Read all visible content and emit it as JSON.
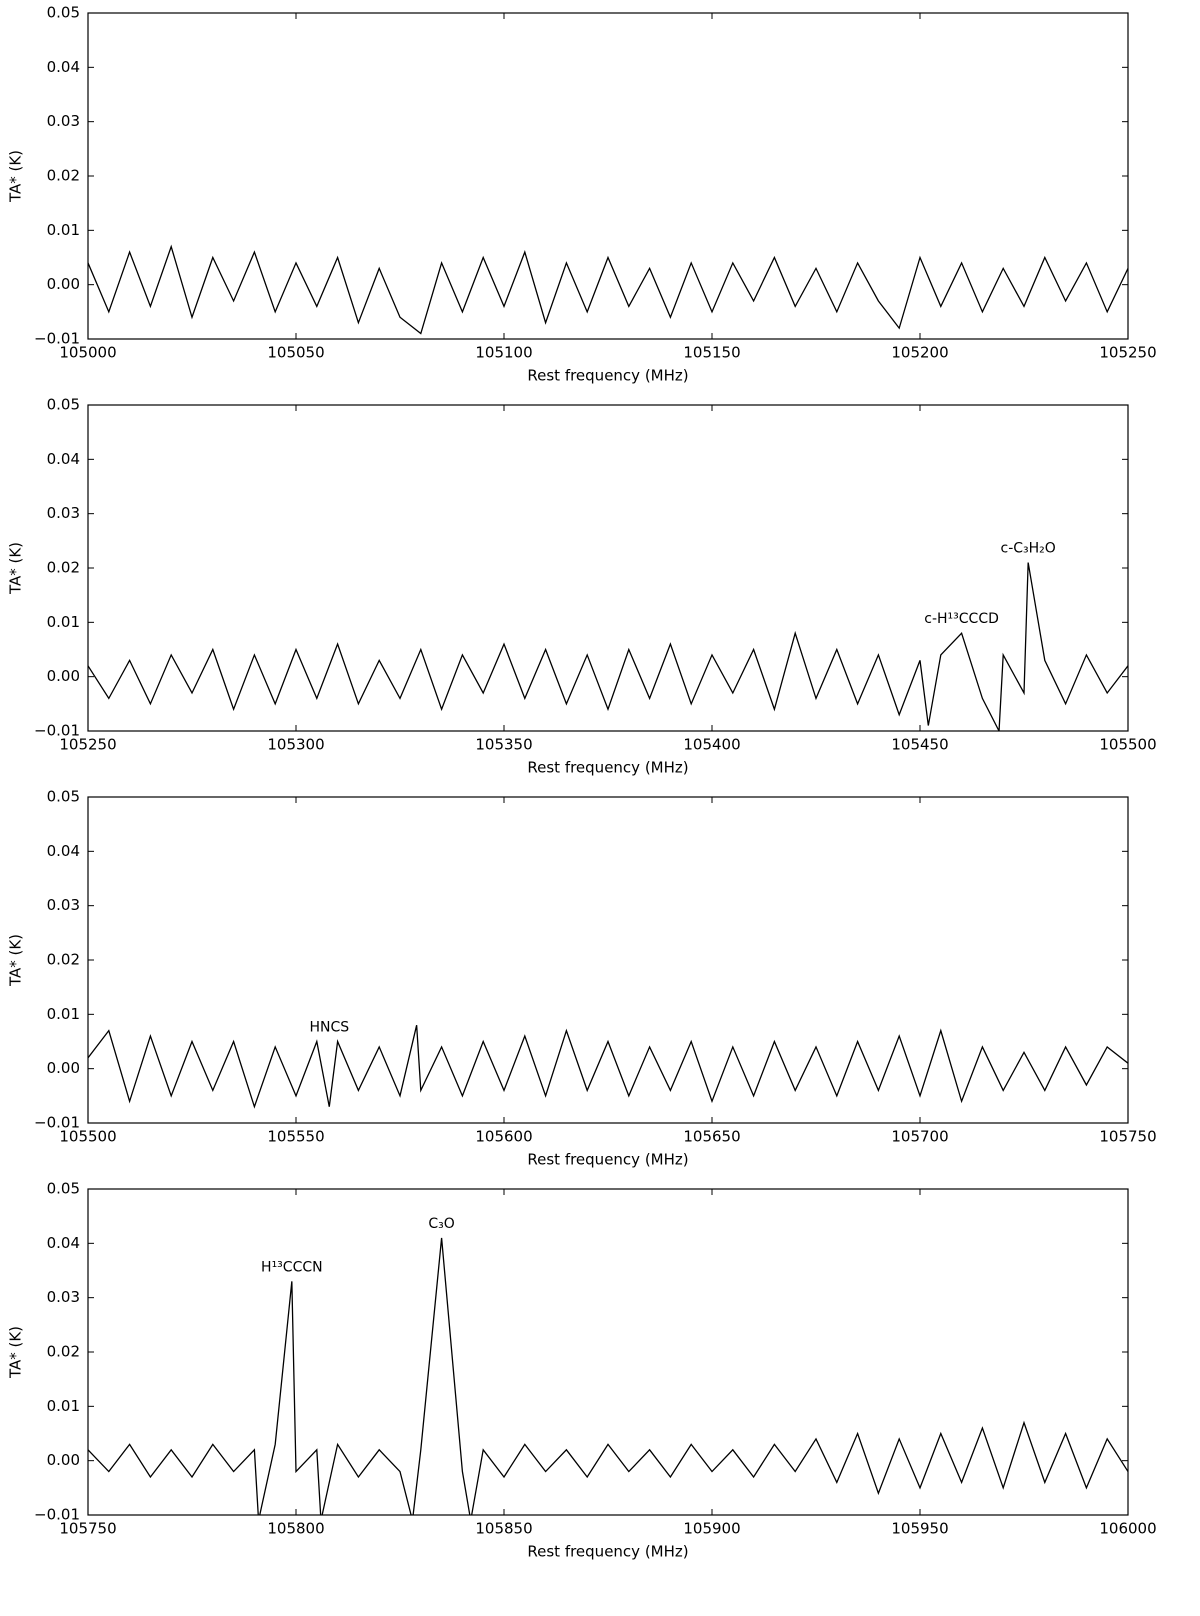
{
  "chart_data": [
    {
      "type": "line",
      "xlabel": "Rest frequency (MHz)",
      "ylabel": "TA* (K)",
      "color": "#000000",
      "xlim": [
        105000,
        105250
      ],
      "ylim": [
        -0.01,
        0.05
      ],
      "xticks": [
        105000,
        105050,
        105100,
        105150,
        105200,
        105250
      ],
      "yticks": [
        {
          "value": -0.01,
          "label": "−0.01"
        },
        {
          "value": 0,
          "label": "0.00"
        },
        {
          "value": 0.01,
          "label": "0.01"
        },
        {
          "value": 0.02,
          "label": "0.02"
        },
        {
          "value": 0.03,
          "label": "0.03"
        },
        {
          "value": 0.04,
          "label": "0.04"
        },
        {
          "value": 0.05,
          "label": "0.05"
        }
      ],
      "x": [
        105000,
        105005,
        105010,
        105015,
        105020,
        105025,
        105030,
        105035,
        105040,
        105045,
        105050,
        105055,
        105060,
        105065,
        105070,
        105075,
        105080,
        105085,
        105090,
        105095,
        105100,
        105105,
        105110,
        105115,
        105120,
        105125,
        105130,
        105135,
        105140,
        105145,
        105150,
        105155,
        105160,
        105165,
        105170,
        105175,
        105180,
        105185,
        105190,
        105195,
        105200,
        105205,
        105210,
        105215,
        105220,
        105225,
        105230,
        105235,
        105240,
        105245,
        105250
      ],
      "values": [
        0.004,
        -0.005,
        0.006,
        -0.004,
        0.007,
        -0.006,
        0.005,
        -0.003,
        0.006,
        -0.005,
        0.004,
        -0.004,
        0.005,
        -0.007,
        0.003,
        -0.006,
        -0.009,
        0.004,
        -0.005,
        0.005,
        -0.004,
        0.006,
        -0.007,
        0.004,
        -0.005,
        0.005,
        -0.004,
        0.003,
        -0.006,
        0.004,
        -0.005,
        0.004,
        -0.003,
        0.005,
        -0.004,
        0.003,
        -0.005,
        0.004,
        -0.003,
        -0.008,
        0.005,
        -0.004,
        0.004,
        -0.005,
        0.003,
        -0.004,
        0.005,
        -0.003,
        0.004,
        -0.005,
        0.003
      ],
      "annotations": []
    },
    {
      "type": "line",
      "xlabel": "Rest frequency (MHz)",
      "ylabel": "TA* (K)",
      "color": "#000000",
      "xlim": [
        105250,
        105500
      ],
      "ylim": [
        -0.01,
        0.05
      ],
      "xticks": [
        105250,
        105300,
        105350,
        105400,
        105450,
        105500
      ],
      "yticks": [
        {
          "value": -0.01,
          "label": "−0.01"
        },
        {
          "value": 0,
          "label": "0.00"
        },
        {
          "value": 0.01,
          "label": "0.01"
        },
        {
          "value": 0.02,
          "label": "0.02"
        },
        {
          "value": 0.03,
          "label": "0.03"
        },
        {
          "value": 0.04,
          "label": "0.04"
        },
        {
          "value": 0.05,
          "label": "0.05"
        }
      ],
      "x": [
        105250,
        105255,
        105260,
        105265,
        105270,
        105275,
        105280,
        105285,
        105290,
        105295,
        105300,
        105305,
        105310,
        105315,
        105320,
        105325,
        105330,
        105335,
        105340,
        105345,
        105350,
        105355,
        105360,
        105365,
        105370,
        105375,
        105380,
        105385,
        105390,
        105395,
        105400,
        105405,
        105410,
        105415,
        105420,
        105425,
        105430,
        105435,
        105440,
        105445,
        105450,
        105452,
        105455,
        105460,
        105465,
        105469,
        105470,
        105475,
        105476,
        105480,
        105485,
        105490,
        105495,
        105500
      ],
      "values": [
        0.002,
        -0.004,
        0.003,
        -0.005,
        0.004,
        -0.003,
        0.005,
        -0.006,
        0.004,
        -0.005,
        0.005,
        -0.004,
        0.006,
        -0.005,
        0.003,
        -0.004,
        0.005,
        -0.006,
        0.004,
        -0.003,
        0.006,
        -0.004,
        0.005,
        -0.005,
        0.004,
        -0.006,
        0.005,
        -0.004,
        0.006,
        -0.005,
        0.004,
        -0.003,
        0.005,
        -0.006,
        0.008,
        -0.004,
        0.005,
        -0.005,
        0.004,
        -0.007,
        0.003,
        -0.009,
        0.004,
        0.008,
        -0.004,
        -0.01,
        0.004,
        -0.003,
        0.021,
        0.003,
        -0.005,
        0.004,
        -0.003,
        0.002
      ],
      "annotations": [
        {
          "text": "c-H¹³CCCD",
          "x": 105460
        },
        {
          "text": "c-C₃H₂O",
          "x": 105476
        }
      ]
    },
    {
      "type": "line",
      "xlabel": "Rest frequency (MHz)",
      "ylabel": "TA* (K)",
      "color": "#000000",
      "xlim": [
        105500,
        105750
      ],
      "ylim": [
        -0.01,
        0.05
      ],
      "xticks": [
        105500,
        105550,
        105600,
        105650,
        105700,
        105750
      ],
      "yticks": [
        {
          "value": -0.01,
          "label": "−0.01"
        },
        {
          "value": 0,
          "label": "0.00"
        },
        {
          "value": 0.01,
          "label": "0.01"
        },
        {
          "value": 0.02,
          "label": "0.02"
        },
        {
          "value": 0.03,
          "label": "0.03"
        },
        {
          "value": 0.04,
          "label": "0.04"
        },
        {
          "value": 0.05,
          "label": "0.05"
        }
      ],
      "x": [
        105500,
        105505,
        105510,
        105515,
        105520,
        105525,
        105530,
        105535,
        105540,
        105545,
        105550,
        105555,
        105558,
        105560,
        105565,
        105570,
        105575,
        105579,
        105580,
        105585,
        105590,
        105595,
        105600,
        105605,
        105610,
        105615,
        105620,
        105625,
        105630,
        105635,
        105640,
        105645,
        105650,
        105655,
        105660,
        105665,
        105670,
        105675,
        105680,
        105685,
        105690,
        105695,
        105700,
        105705,
        105710,
        105715,
        105720,
        105725,
        105730,
        105735,
        105740,
        105745,
        105750
      ],
      "values": [
        0.002,
        0.007,
        -0.006,
        0.006,
        -0.005,
        0.005,
        -0.004,
        0.005,
        -0.007,
        0.004,
        -0.005,
        0.005,
        -0.007,
        0.005,
        -0.004,
        0.004,
        -0.005,
        0.008,
        -0.004,
        0.004,
        -0.005,
        0.005,
        -0.004,
        0.006,
        -0.005,
        0.007,
        -0.004,
        0.005,
        -0.005,
        0.004,
        -0.004,
        0.005,
        -0.006,
        0.004,
        -0.005,
        0.005,
        -0.004,
        0.004,
        -0.005,
        0.005,
        -0.004,
        0.006,
        -0.005,
        0.007,
        -0.006,
        0.004,
        -0.004,
        0.003,
        -0.004,
        0.004,
        -0.003,
        0.004,
        0.001
      ],
      "annotations": [
        {
          "text": "HNCS",
          "x": 105558
        }
      ]
    },
    {
      "type": "line",
      "xlabel": "Rest frequency (MHz)",
      "ylabel": "TA* (K)",
      "color": "#000000",
      "xlim": [
        105750,
        106000
      ],
      "ylim": [
        -0.01,
        0.05
      ],
      "xticks": [
        105750,
        105800,
        105850,
        105900,
        105950,
        106000
      ],
      "yticks": [
        {
          "value": -0.01,
          "label": "−0.01"
        },
        {
          "value": 0,
          "label": "0.00"
        },
        {
          "value": 0.01,
          "label": "0.01"
        },
        {
          "value": 0.02,
          "label": "0.02"
        },
        {
          "value": 0.03,
          "label": "0.03"
        },
        {
          "value": 0.04,
          "label": "0.04"
        },
        {
          "value": 0.05,
          "label": "0.05"
        }
      ],
      "x": [
        105750,
        105755,
        105760,
        105765,
        105770,
        105775,
        105780,
        105785,
        105790,
        105791,
        105795,
        105799,
        105800,
        105805,
        105806,
        105810,
        105815,
        105820,
        105825,
        105828,
        105830,
        105835,
        105840,
        105842,
        105845,
        105850,
        105855,
        105860,
        105865,
        105870,
        105875,
        105880,
        105885,
        105890,
        105895,
        105900,
        105905,
        105910,
        105915,
        105920,
        105925,
        105930,
        105935,
        105940,
        105945,
        105950,
        105955,
        105960,
        105965,
        105970,
        105975,
        105980,
        105985,
        105990,
        105995,
        106000
      ],
      "values": [
        0.002,
        -0.002,
        0.003,
        -0.003,
        0.002,
        -0.003,
        0.003,
        -0.002,
        0.002,
        -0.011,
        0.003,
        0.033,
        -0.002,
        0.002,
        -0.011,
        0.003,
        -0.003,
        0.002,
        -0.002,
        -0.011,
        0.002,
        0.041,
        -0.002,
        -0.011,
        0.002,
        -0.003,
        0.003,
        -0.002,
        0.002,
        -0.003,
        0.003,
        -0.002,
        0.002,
        -0.003,
        0.003,
        -0.002,
        0.002,
        -0.003,
        0.003,
        -0.002,
        0.004,
        -0.004,
        0.005,
        -0.006,
        0.004,
        -0.005,
        0.005,
        -0.004,
        0.006,
        -0.005,
        0.007,
        -0.004,
        0.005,
        -0.005,
        0.004,
        -0.002
      ],
      "annotations": [
        {
          "text": "H¹³CCCN",
          "x": 105799
        },
        {
          "text": "C₃O",
          "x": 105835
        }
      ]
    }
  ]
}
